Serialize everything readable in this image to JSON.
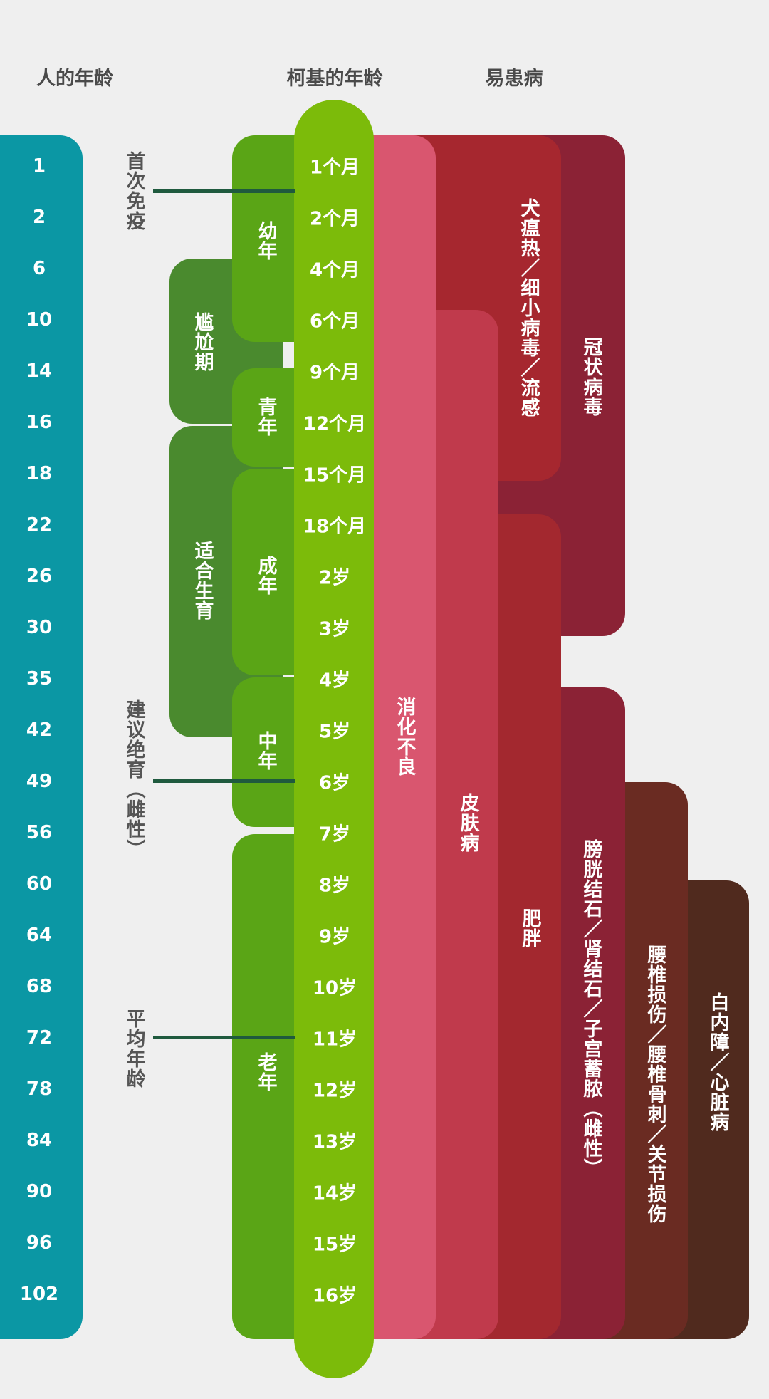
{
  "headers": {
    "human": "人的年龄",
    "dog": "柯基的年龄",
    "disease": "易患病"
  },
  "human_ages": [
    "1",
    "2",
    "6",
    "10",
    "14",
    "16",
    "18",
    "22",
    "26",
    "30",
    "35",
    "42",
    "49",
    "56",
    "60",
    "64",
    "68",
    "72",
    "78",
    "84",
    "90",
    "96",
    "102"
  ],
  "dog_ages": [
    "1个月",
    "2个月",
    "4个月",
    "6个月",
    "9个月",
    "12个月",
    "15个月",
    "18个月",
    "2岁",
    "3岁",
    "4岁",
    "5岁",
    "6岁",
    "7岁",
    "8岁",
    "9岁",
    "10岁",
    "11岁",
    "12岁",
    "13岁",
    "14岁",
    "15岁",
    "16岁"
  ],
  "annotations": {
    "first_vaccine": "首次免疫",
    "neuter": "建议绝育（雌性）",
    "average_age": "平均年龄"
  },
  "stages": {
    "infant": "幼年",
    "youth": "青年",
    "adult": "成年",
    "middle": "中年",
    "senior": "老年"
  },
  "phases": {
    "awkward": "尴尬期",
    "breeding": "适合生育"
  },
  "diseases": {
    "indigestion": "消化不良",
    "distemper": "犬瘟热／细小病毒／流感",
    "corona": "冠状病毒",
    "skin": "皮肤病",
    "obesity": "肥胖",
    "stones": "膀胱结石／肾结石／子宫蓄脓（雌性）",
    "spine": "腰椎损伤／腰椎骨刺／关节损伤",
    "heart": "白内障／心脏病"
  },
  "colors": {
    "background": "#efefef",
    "human": "#0b97a4",
    "dog": "#7cbb0a",
    "stage": "#5aa516",
    "phase": "#4a8a2e",
    "indigestion": "#d9566f",
    "skin": "#c03a4c",
    "distemper": "#a6272f",
    "obesity": "#a3282f",
    "corona": "#8b2235",
    "stones": "#8b2235",
    "spine": "#6a2b22",
    "heart": "#502a1e",
    "line": "#1f5a3e"
  }
}
